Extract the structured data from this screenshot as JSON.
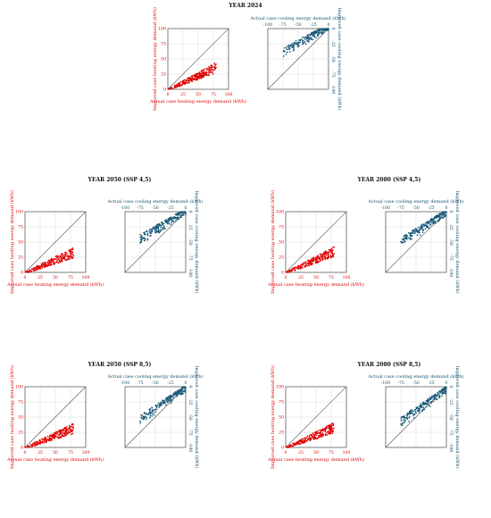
{
  "colors": {
    "heating": "#e00000",
    "cooling": "#1a5a7a",
    "cooling_text": "#15506d",
    "grid": "#d9d9d9",
    "diag": "#555555"
  },
  "panels": [
    {
      "title": "YEAR 2024",
      "heat_slope": 0.46,
      "cool_fit": [
        0.55,
        6
      ]
    },
    {
      "title": "YEAR 2050 (SSP 4,5)",
      "heat_slope": 0.42,
      "cool_fit": [
        0.62,
        4
      ]
    },
    {
      "title": "YEAR 2080 (SSP 4,5)",
      "heat_slope": 0.44,
      "cool_fit": [
        0.66,
        2
      ]
    },
    {
      "title": "YEAR 2050 (SSP 8,5)",
      "heat_slope": 0.4,
      "cool_fit": [
        0.7,
        1
      ]
    },
    {
      "title": "YEAR 2080 (SSP 8,5)",
      "heat_slope": 0.42,
      "cool_fit": [
        0.72,
        -1
      ]
    }
  ],
  "chart_data": {
    "heating": {
      "type": "scatter",
      "xlabel": "Actual case heating energy demand (kWh)",
      "ylabel": "Improved case heating energy demand (kWh)",
      "xlim": [
        0,
        100
      ],
      "ylim": [
        0,
        100
      ],
      "ticks": [
        0,
        25,
        50,
        75,
        100
      ],
      "tick_labels": [
        "0",
        "25",
        "50",
        "75",
        "100"
      ],
      "reference_line": "y = x",
      "grid": true
    },
    "cooling": {
      "type": "scatter",
      "xlabel": "Actual case cooling energy demand (kWh)",
      "ylabel": "Improved case cooling energy demand (kWh)",
      "xlim": [
        -100,
        0
      ],
      "ylim": [
        -100,
        0
      ],
      "ticks": [
        -100,
        -75,
        -50,
        -25,
        0
      ],
      "tick_labels": [
        "-100",
        "-75",
        "-50",
        "-25",
        "0"
      ],
      "x_axis_position": "top",
      "y_axis_position": "right",
      "reference_line": "y = x",
      "grid": true
    }
  }
}
